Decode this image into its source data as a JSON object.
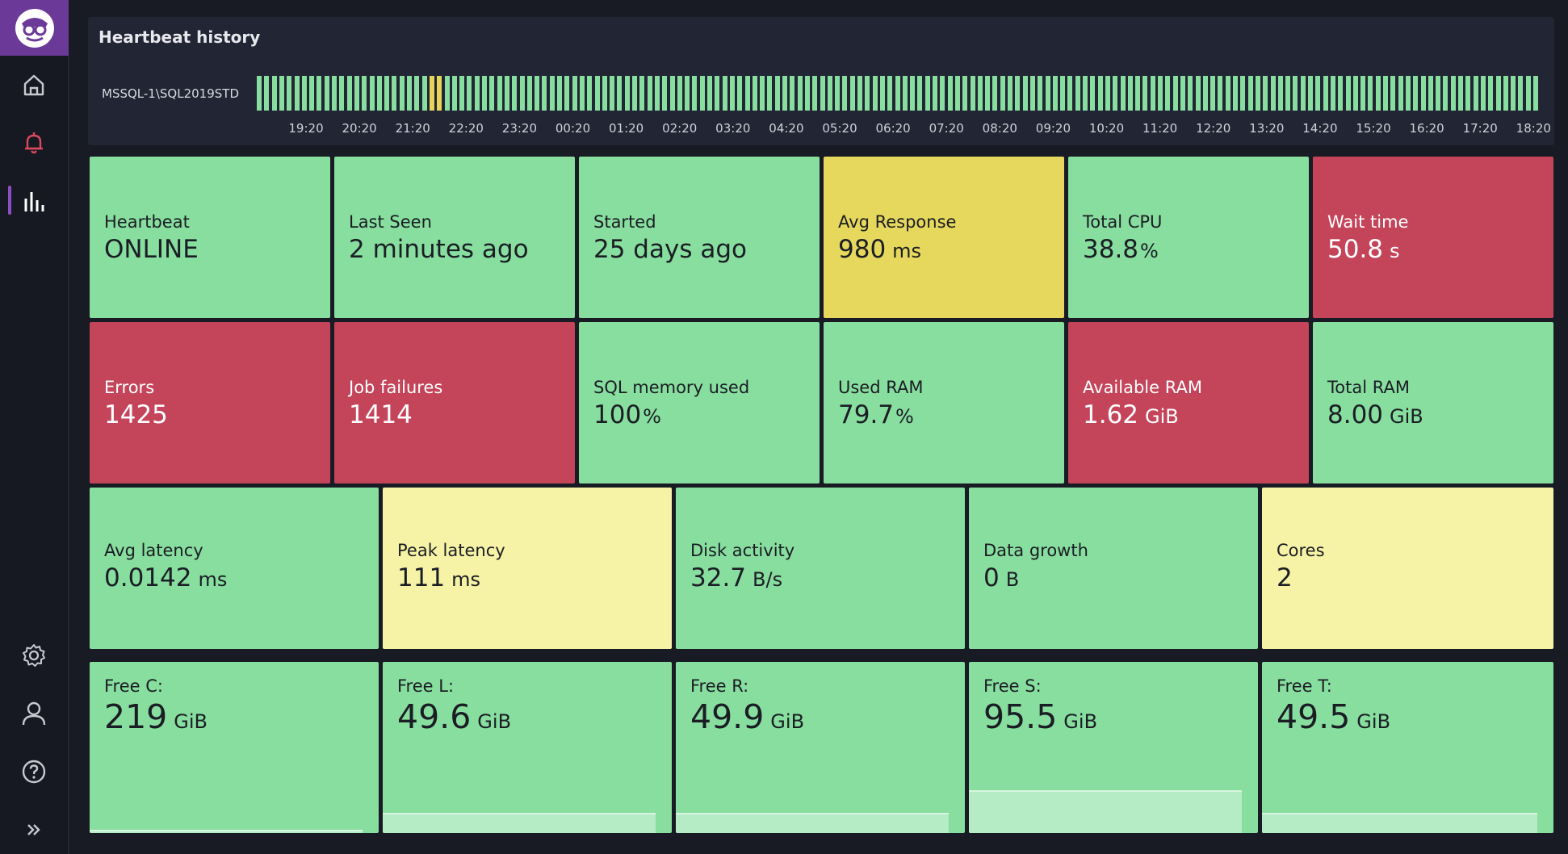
{
  "sidebar": {
    "items": [
      {
        "name": "home",
        "icon": "home-icon"
      },
      {
        "name": "alerts",
        "icon": "bell-icon",
        "color": "#d9485e"
      },
      {
        "name": "metrics",
        "icon": "bar-chart-icon",
        "active": true
      },
      {
        "name": "settings",
        "icon": "gear-icon"
      },
      {
        "name": "account",
        "icon": "user-icon"
      },
      {
        "name": "help",
        "icon": "help-icon"
      },
      {
        "name": "expand",
        "icon": "chevron-double-right-icon"
      }
    ]
  },
  "heartbeat": {
    "title": "Heartbeat history",
    "server": "MSSQL-1\\SQL2019STD",
    "times": [
      "19:20",
      "20:20",
      "21:20",
      "22:20",
      "23:20",
      "00:20",
      "01:20",
      "02:20",
      "03:20",
      "04:20",
      "05:20",
      "06:20",
      "07:20",
      "08:20",
      "09:20",
      "10:20",
      "11:20",
      "12:20",
      "13:20",
      "14:20",
      "15:20",
      "16:20",
      "17:20",
      "18:20"
    ],
    "status_colors": {
      "ok": "#87de9f",
      "warn": "#e6d55a"
    },
    "warn_bar_indices": [
      23,
      24
    ]
  },
  "colors": {
    "green": "#87de9f",
    "red": "#c4445a",
    "yellow": "#e6d85c",
    "light_yellow": "#f6f3a6"
  },
  "tiles": {
    "heartbeat": {
      "label": "Heartbeat",
      "value": "ONLINE",
      "unit": ""
    },
    "last_seen": {
      "label": "Last Seen",
      "value": "2 minutes ago",
      "unit": ""
    },
    "started": {
      "label": "Started",
      "value": "25 days ago",
      "unit": ""
    },
    "avg_response": {
      "label": "Avg Response",
      "value": "980",
      "unit": "ms"
    },
    "total_cpu": {
      "label": "Total CPU",
      "value": "38.8",
      "unit": "%"
    },
    "wait_time": {
      "label": "Wait time",
      "value": "50.8",
      "unit": "s"
    },
    "errors": {
      "label": "Errors",
      "value": "1425",
      "unit": ""
    },
    "job_failures": {
      "label": "Job failures",
      "value": "1414",
      "unit": ""
    },
    "sql_memory": {
      "label": "SQL memory used",
      "value": "100",
      "unit": "%"
    },
    "used_ram": {
      "label": "Used RAM",
      "value": "79.7",
      "unit": "%"
    },
    "available_ram": {
      "label": "Available RAM",
      "value": "1.62",
      "unit": "GiB"
    },
    "total_ram": {
      "label": "Total RAM",
      "value": "8.00",
      "unit": "GiB"
    },
    "avg_latency": {
      "label": "Avg latency",
      "value": "0.0142",
      "unit": "ms"
    },
    "peak_latency": {
      "label": "Peak latency",
      "value": "111",
      "unit": "ms"
    },
    "disk_activity": {
      "label": "Disk activity",
      "value": "32.7",
      "unit": "B/s"
    },
    "data_growth": {
      "label": "Data growth",
      "value": "0",
      "unit": "B"
    },
    "cores": {
      "label": "Cores",
      "value": "2",
      "unit": ""
    },
    "free_c": {
      "label": "Free C:",
      "value": "219",
      "unit": "GiB",
      "used_fraction": 0.02
    },
    "free_l": {
      "label": "Free L:",
      "value": "49.6",
      "unit": "GiB",
      "used_fraction": 0.12
    },
    "free_r": {
      "label": "Free R:",
      "value": "49.9",
      "unit": "GiB",
      "used_fraction": 0.12
    },
    "free_s": {
      "label": "Free S:",
      "value": "95.5",
      "unit": "GiB",
      "used_fraction": 0.25
    },
    "free_t": {
      "label": "Free T:",
      "value": "49.5",
      "unit": "GiB",
      "used_fraction": 0.12
    }
  }
}
